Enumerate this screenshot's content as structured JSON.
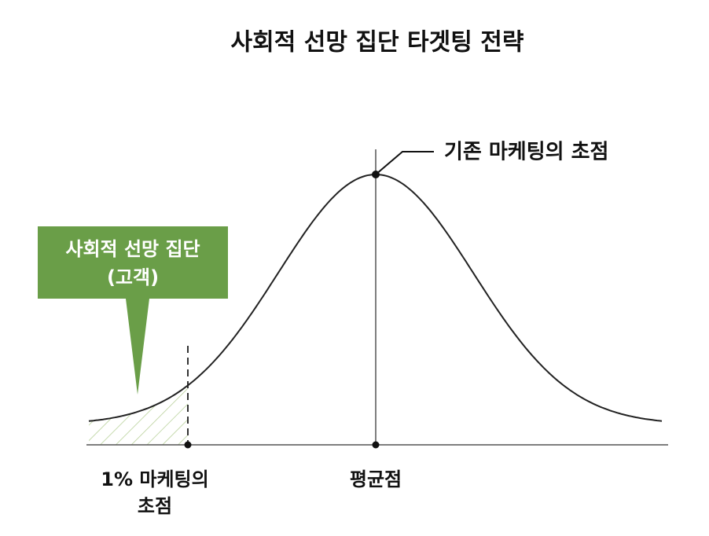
{
  "title": "사회적 선망 집단 타겟팅 전략",
  "callout": {
    "lines": [
      "사회적 선망 집단",
      "(고객)"
    ]
  },
  "peak_label": "기존 마케팅의 초점",
  "left_label": {
    "lines": [
      "1% 마케팅의",
      "초점"
    ]
  },
  "center_label": "평균점"
}
